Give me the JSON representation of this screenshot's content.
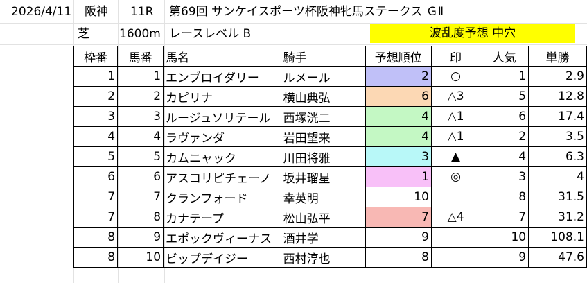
{
  "header": {
    "date": "2026/4/11",
    "venue": "阪神",
    "race_no": "11R",
    "race_name": "第69回 サンケイスポーツ杯阪神牝馬ステークス ＧⅡ",
    "surface": "芝",
    "distance": "1600m",
    "level": "レースレベル B",
    "forecast": "波乱度予想 中穴"
  },
  "columns": [
    "枠番",
    "馬番",
    "馬名",
    "騎手",
    "予想順位",
    "印",
    "人気",
    "単勝"
  ],
  "rows": [
    {
      "waku": "1",
      "umaban": "1",
      "horse": "エンブロイダリー",
      "jockey": "ルメール",
      "rank": "2",
      "mark": "○",
      "pop": "1",
      "odds": "2.9",
      "color": "#c0c0f8"
    },
    {
      "waku": "2",
      "umaban": "2",
      "horse": "カピリナ",
      "jockey": "横山典弘",
      "rank": "6",
      "mark": "△3",
      "pop": "5",
      "odds": "12.8",
      "color": "#fcd8b4"
    },
    {
      "waku": "3",
      "umaban": "3",
      "horse": "ルージュソリテール",
      "jockey": "西塚洸二",
      "rank": "4",
      "mark": "△1",
      "pop": "6",
      "odds": "17.4",
      "color": "#c4f8c4"
    },
    {
      "waku": "4",
      "umaban": "4",
      "horse": "ラヴァンダ",
      "jockey": "岩田望来",
      "rank": "4",
      "mark": "△1",
      "pop": "2",
      "odds": "3.5",
      "color": "#c4f8c4"
    },
    {
      "waku": "5",
      "umaban": "5",
      "horse": "カムニャック",
      "jockey": "川田将雅",
      "rank": "3",
      "mark": "▲",
      "pop": "4",
      "odds": "6.3",
      "color": "#b8f8f8"
    },
    {
      "waku": "6",
      "umaban": "6",
      "horse": "アスコリピチェーノ",
      "jockey": "坂井瑠星",
      "rank": "1",
      "mark": "◎",
      "pop": "3",
      "odds": "4",
      "color": "#f8c0f8"
    },
    {
      "waku": "7",
      "umaban": "7",
      "horse": "クランフォード",
      "jockey": "幸英明",
      "rank": "10",
      "mark": "",
      "pop": "8",
      "odds": "31.5",
      "color": ""
    },
    {
      "waku": "7",
      "umaban": "8",
      "horse": "カナテープ",
      "jockey": "松山弘平",
      "rank": "7",
      "mark": "△4",
      "pop": "7",
      "odds": "31.2",
      "color": "#f8b8b4"
    },
    {
      "waku": "8",
      "umaban": "9",
      "horse": "エポックヴィーナス",
      "jockey": "酒井学",
      "rank": "9",
      "mark": "",
      "pop": "10",
      "odds": "108.1",
      "color": ""
    },
    {
      "waku": "8",
      "umaban": "10",
      "horse": "ビップデイジー",
      "jockey": "西村淳也",
      "rank": "8",
      "mark": "",
      "pop": "9",
      "odds": "47.6",
      "color": ""
    }
  ]
}
